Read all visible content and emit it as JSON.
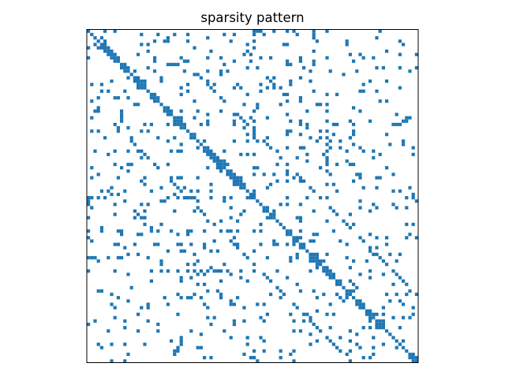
{
  "chart_data": {
    "type": "heatmap",
    "title": "sparsity pattern",
    "n": 100,
    "axes_visible": false,
    "grid": false,
    "marker_color": "#1f77b4",
    "nonzeros_description": "structurally symmetric sparse matrix with main diagonal, 1st and 2nd sub/super diagonals partially filled, an off-diagonal band at offset 20 (upper), and an irregular lower block"
  }
}
